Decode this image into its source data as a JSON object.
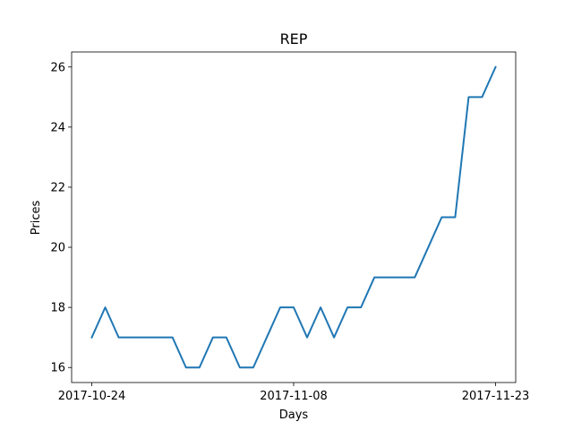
{
  "chart_data": {
    "type": "line",
    "title": "REP",
    "xlabel": "Days",
    "ylabel": "Prices",
    "x": [
      "2017-10-24",
      "2017-10-25",
      "2017-10-26",
      "2017-10-27",
      "2017-10-28",
      "2017-10-29",
      "2017-10-30",
      "2017-10-31",
      "2017-11-01",
      "2017-11-02",
      "2017-11-03",
      "2017-11-04",
      "2017-11-05",
      "2017-11-06",
      "2017-11-07",
      "2017-11-08",
      "2017-11-09",
      "2017-11-10",
      "2017-11-11",
      "2017-11-12",
      "2017-11-13",
      "2017-11-14",
      "2017-11-15",
      "2017-11-16",
      "2017-11-17",
      "2017-11-18",
      "2017-11-19",
      "2017-11-20",
      "2017-11-21",
      "2017-11-22",
      "2017-11-23"
    ],
    "series": [
      {
        "color": "#1f77b4",
        "values": [
          17,
          18,
          17,
          17,
          17,
          17,
          17,
          16,
          16,
          17,
          17,
          16,
          16,
          17,
          18,
          18,
          17,
          18,
          17,
          18,
          18,
          19,
          19,
          19,
          19,
          20,
          21,
          21,
          25,
          25,
          26
        ]
      }
    ],
    "x_ticks": [
      "2017-10-24",
      "2017-11-08",
      "2017-11-23"
    ],
    "y_ticks": [
      "16",
      "18",
      "20",
      "22",
      "24",
      "26"
    ],
    "ylim": [
      15.5,
      26.5
    ],
    "grid": false,
    "legend": "none"
  }
}
